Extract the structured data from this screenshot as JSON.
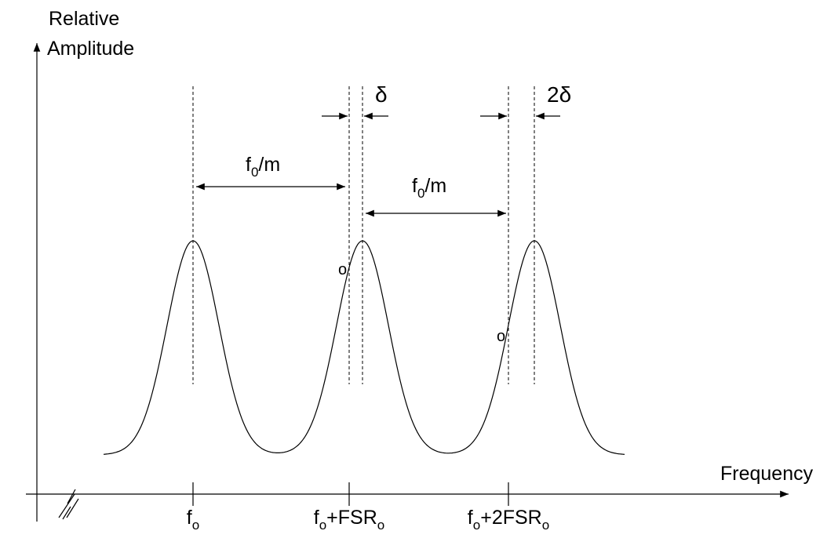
{
  "axes": {
    "y_label": [
      "Relative",
      "Amplitude"
    ],
    "x_label": "Frequency"
  },
  "offsets": {
    "single": "δ",
    "double": "2δ"
  },
  "spacings": [
    [
      {
        "text": "f"
      },
      {
        "sub": "0"
      },
      {
        "text": "/m"
      }
    ],
    [
      {
        "text": "f"
      },
      {
        "sub": "0"
      },
      {
        "text": "/m"
      }
    ]
  ],
  "markers": [
    "o",
    "o"
  ],
  "ticks": [
    [
      {
        "text": "f"
      },
      {
        "sub": "o"
      }
    ],
    [
      {
        "text": "f"
      },
      {
        "sub": "o"
      },
      {
        "text": "+FSR"
      },
      {
        "sub": "o"
      }
    ],
    [
      {
        "text": "f"
      },
      {
        "sub": "o"
      },
      {
        "text": "+2FSR"
      },
      {
        "sub": "o"
      }
    ]
  ]
}
